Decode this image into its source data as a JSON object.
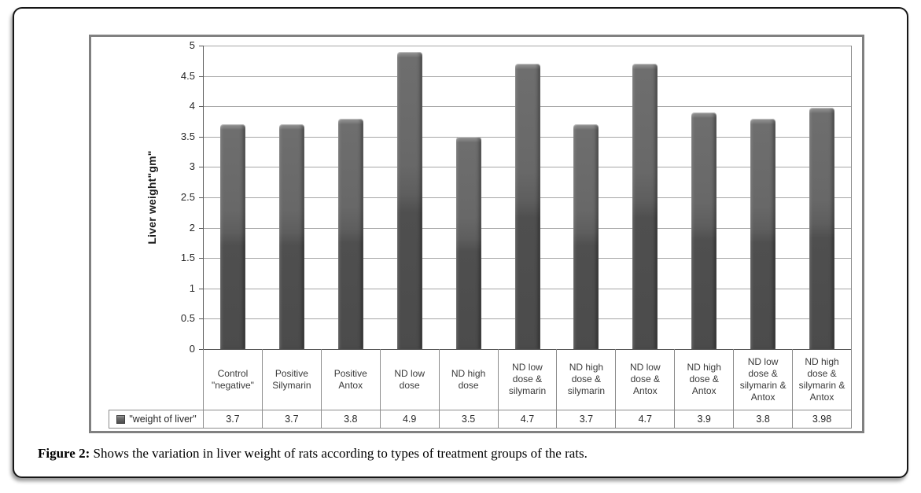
{
  "figure": {
    "caption_label": "Figure 2:",
    "caption_text": " Shows the variation in liver weight of rats according to types of treatment groups of the rats."
  },
  "chart_data": {
    "type": "bar",
    "title": "",
    "xlabel": "",
    "ylabel": "Liver weight\"gm\"",
    "ylim": [
      0,
      5
    ],
    "ytick_step": 0.5,
    "yticks": [
      "5",
      "4.5",
      "4",
      "3.5",
      "3",
      "2.5",
      "2",
      "1.5",
      "1",
      "0.5",
      "0"
    ],
    "grid": true,
    "legend_position": "data-table-left",
    "series_name": "\"weight of liver\"",
    "categories": [
      "Control \"negative\"",
      "Positive Silymarin",
      "Positive Antox",
      "ND low dose",
      "ND high dose",
      "ND low dose & silymarin",
      "ND high dose & silymarin",
      "ND low dose & Antox",
      "ND high dose & Antox",
      "ND low dose & silymarin & Antox",
      "ND high dose & silymarin & Antox"
    ],
    "values": [
      3.7,
      3.7,
      3.8,
      4.9,
      3.5,
      4.7,
      3.7,
      4.7,
      3.9,
      3.8,
      3.98
    ],
    "value_labels": [
      "3.7",
      "3.7",
      "3.8",
      "4.9",
      "3.5",
      "4.7",
      "3.7",
      "4.7",
      "3.9",
      "3.8",
      "3.98"
    ],
    "colors": {
      "bar": "#595959",
      "gridline": "#a6a6a6",
      "axis": "#595959",
      "table_border": "#8c8c8c",
      "frame_border": "#808080"
    }
  }
}
